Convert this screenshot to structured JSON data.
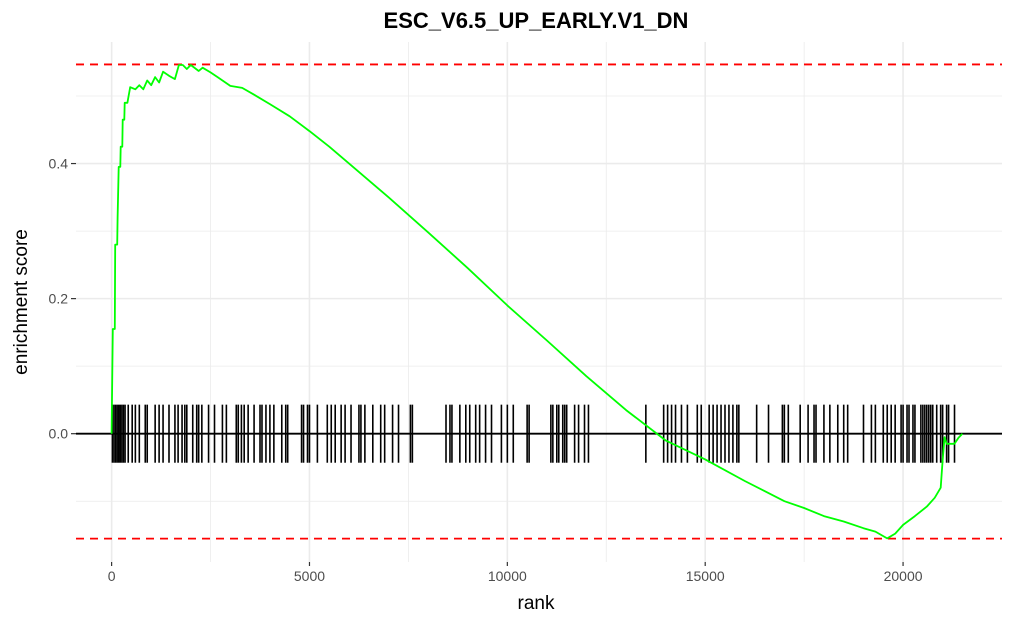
{
  "chart_data": {
    "type": "line",
    "title": "ESC_V6.5_UP_EARLY.V1_DN",
    "xlabel": "rank",
    "ylabel": "enrichment score",
    "x_ticks": [
      0,
      5000,
      10000,
      15000,
      20000
    ],
    "x_tick_labels": [
      "0",
      "5000",
      "10000",
      "15000",
      "20000"
    ],
    "y_ticks": [
      0.0,
      0.2,
      0.4
    ],
    "y_tick_labels": [
      "0.0",
      "0.2",
      "0.4"
    ],
    "xlim": [
      -900,
      22500
    ],
    "ylim": [
      -0.19,
      0.58
    ],
    "grid": true,
    "colors": {
      "curve": "#00ff00",
      "bounds": "#ff0000",
      "hits": "#000000",
      "zero_line": "#000000",
      "grid": "#ebebeb"
    },
    "bounds": {
      "max_es": 0.5468,
      "min_es": -0.1554
    },
    "hit_band": {
      "low": -0.043,
      "high": 0.043
    },
    "series": [
      {
        "values": [
          [
            0,
            0.0
          ],
          [
            30,
            0.155
          ],
          [
            80,
            0.155
          ],
          [
            90,
            0.28
          ],
          [
            140,
            0.28
          ],
          [
            150,
            0.32
          ],
          [
            180,
            0.395
          ],
          [
            220,
            0.395
          ],
          [
            230,
            0.425
          ],
          [
            270,
            0.425
          ],
          [
            280,
            0.465
          ],
          [
            320,
            0.465
          ],
          [
            330,
            0.49
          ],
          [
            400,
            0.49
          ],
          [
            430,
            0.5
          ],
          [
            470,
            0.513
          ],
          [
            600,
            0.51
          ],
          [
            700,
            0.516
          ],
          [
            800,
            0.51
          ],
          [
            900,
            0.523
          ],
          [
            1000,
            0.516
          ],
          [
            1100,
            0.528
          ],
          [
            1200,
            0.52
          ],
          [
            1300,
            0.536
          ],
          [
            1450,
            0.53
          ],
          [
            1600,
            0.525
          ],
          [
            1700,
            0.546
          ],
          [
            1800,
            0.546
          ],
          [
            1900,
            0.54
          ],
          [
            2000,
            0.546
          ],
          [
            2200,
            0.537
          ],
          [
            2300,
            0.542
          ],
          [
            2500,
            0.535
          ],
          [
            2700,
            0.527
          ],
          [
            3000,
            0.515
          ],
          [
            3300,
            0.512
          ],
          [
            3600,
            0.502
          ],
          [
            4000,
            0.488
          ],
          [
            4500,
            0.47
          ],
          [
            5000,
            0.448
          ],
          [
            5500,
            0.425
          ],
          [
            6000,
            0.4
          ],
          [
            7000,
            0.35
          ],
          [
            8000,
            0.298
          ],
          [
            9000,
            0.245
          ],
          [
            10000,
            0.19
          ],
          [
            11000,
            0.138
          ],
          [
            12000,
            0.085
          ],
          [
            13000,
            0.035
          ],
          [
            14000,
            -0.01
          ],
          [
            15000,
            -0.038
          ],
          [
            16000,
            -0.07
          ],
          [
            16500,
            -0.085
          ],
          [
            17000,
            -0.1
          ],
          [
            17500,
            -0.11
          ],
          [
            18000,
            -0.122
          ],
          [
            18500,
            -0.13
          ],
          [
            19000,
            -0.14
          ],
          [
            19300,
            -0.145
          ],
          [
            19600,
            -0.155
          ],
          [
            19800,
            -0.148
          ],
          [
            20000,
            -0.135
          ],
          [
            20300,
            -0.122
          ],
          [
            20600,
            -0.108
          ],
          [
            20800,
            -0.095
          ],
          [
            20950,
            -0.08
          ],
          [
            21000,
            -0.04
          ],
          [
            21050,
            -0.005
          ],
          [
            21100,
            -0.015
          ],
          [
            21300,
            -0.015
          ],
          [
            21400,
            -0.006
          ],
          [
            21500,
            0.0
          ]
        ]
      }
    ],
    "hits": [
      20,
      60,
      100,
      140,
      180,
      220,
      260,
      300,
      340,
      420,
      520,
      600,
      700,
      850,
      900,
      1100,
      1200,
      1300,
      1450,
      1600,
      1680,
      1780,
      1850,
      1900,
      2050,
      2150,
      2200,
      2280,
      2450,
      2600,
      2800,
      2900,
      3150,
      3200,
      3280,
      3350,
      3450,
      3600,
      3750,
      3800,
      3900,
      4000,
      4100,
      4300,
      4400,
      4450,
      4800,
      4850,
      4950,
      5000,
      5200,
      5450,
      5550,
      5650,
      5800,
      5900,
      6050,
      6250,
      6300,
      6400,
      6600,
      6800,
      6900,
      7100,
      7250,
      7550,
      7600,
      8450,
      8550,
      8600,
      8800,
      8950,
      9050,
      9200,
      9300,
      9450,
      9600,
      9850,
      10000,
      10150,
      10500,
      10550,
      11100,
      11150,
      11250,
      11300,
      11400,
      11450,
      11500,
      11700,
      11800,
      11950,
      12050,
      13500,
      13950,
      14050,
      14150,
      14250,
      14400,
      14550,
      14800,
      14900,
      15100,
      15200,
      15300,
      15400,
      15500,
      15600,
      15700,
      15800,
      15850,
      16300,
      16600,
      16950,
      17000,
      17100,
      17400,
      17600,
      17750,
      17800,
      18000,
      18150,
      18350,
      18500,
      18600,
      19000,
      19200,
      19300,
      19500,
      19600,
      19700,
      19800,
      19950,
      20000,
      20100,
      20150,
      20250,
      20300,
      20450,
      20500,
      20550,
      20600,
      20650,
      20700,
      20750,
      20850,
      20950,
      21000,
      21100,
      21150,
      21300
    ]
  }
}
